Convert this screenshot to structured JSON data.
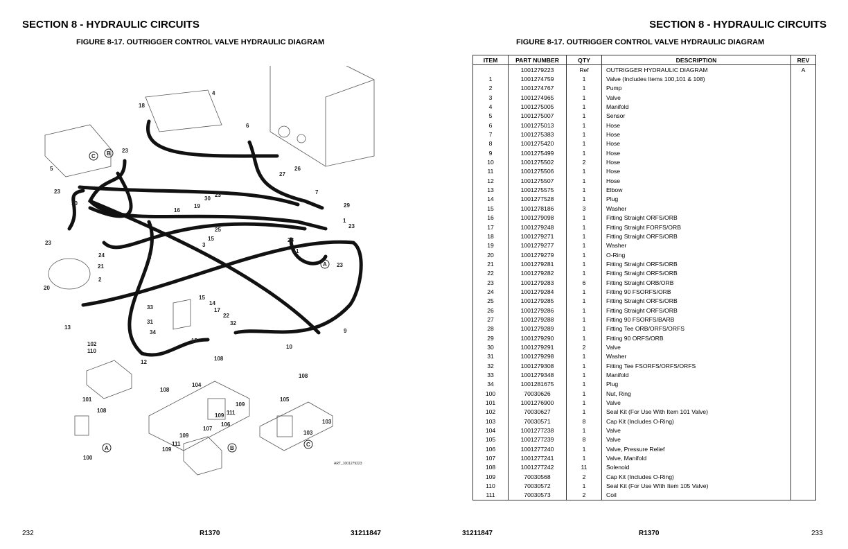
{
  "left_page": {
    "section_title": "SECTION 8 - HYDRAULIC CIRCUITS",
    "figure_title": "FIGURE 8-17. OUTRIGGER CONTROL VALVE HYDRAULIC DIAGRAM",
    "page_number": "232",
    "footer_model": "R1370",
    "footer_doc": "31211847"
  },
  "right_page": {
    "section_title": "SECTION 8 - HYDRAULIC CIRCUITS",
    "figure_title": "FIGURE 8-17. OUTRIGGER CONTROL VALVE HYDRAULIC DIAGRAM",
    "page_number": "233",
    "footer_model": "R1370",
    "footer_doc": "31211847"
  },
  "diagram": {
    "art_id": "ART_1001279223",
    "callouts": [
      "4",
      "18",
      "6",
      "23",
      "C",
      "B",
      "5",
      "27",
      "26",
      "23",
      "10",
      "7",
      "30",
      "23",
      "19",
      "16",
      "29",
      "1",
      "23",
      "25",
      "15",
      "3",
      "28",
      "23",
      "24",
      "11",
      "8",
      "21",
      "A",
      "23",
      "2",
      "20",
      "15",
      "14",
      "33",
      "17",
      "22",
      "32",
      "31",
      "34",
      "15",
      "13",
      "9",
      "10",
      "102",
      "110",
      "12",
      "108",
      "108",
      "104",
      "108",
      "101",
      "108",
      "109",
      "111",
      "109",
      "105",
      "103",
      "107",
      "106",
      "103",
      "A",
      "109",
      "111",
      "109",
      "B",
      "C",
      "100"
    ]
  },
  "parts_table": {
    "headers": {
      "item": "ITEM",
      "part": "PART NUMBER",
      "qty": "QTY",
      "desc": "DESCRIPTION",
      "rev": "REV"
    },
    "rows": [
      {
        "item": "",
        "part": "1001279223",
        "qty": "Ref",
        "desc": "OUTRIGGER HYDRAULIC  DIAGRAM",
        "rev": "A"
      },
      {
        "item": "1",
        "part": "1001274759",
        "qty": "1",
        "desc": "Valve (Includes Items 100,101 & 108)",
        "rev": ""
      },
      {
        "item": "2",
        "part": "1001274767",
        "qty": "1",
        "desc": "Pump",
        "rev": ""
      },
      {
        "item": "3",
        "part": "1001274965",
        "qty": "1",
        "desc": "Valve",
        "rev": ""
      },
      {
        "item": "4",
        "part": "1001275005",
        "qty": "1",
        "desc": "Manifold",
        "rev": ""
      },
      {
        "item": "5",
        "part": "1001275007",
        "qty": "1",
        "desc": "Sensor",
        "rev": ""
      },
      {
        "item": "6",
        "part": "1001275013",
        "qty": "1",
        "desc": "Hose",
        "rev": ""
      },
      {
        "item": "7",
        "part": "1001275383",
        "qty": "1",
        "desc": "Hose",
        "rev": ""
      },
      {
        "item": "8",
        "part": "1001275420",
        "qty": "1",
        "desc": "Hose",
        "rev": ""
      },
      {
        "item": "9",
        "part": "1001275499",
        "qty": "1",
        "desc": "Hose",
        "rev": ""
      },
      {
        "item": "10",
        "part": "1001275502",
        "qty": "2",
        "desc": "Hose",
        "rev": ""
      },
      {
        "item": "11",
        "part": "1001275506",
        "qty": "1",
        "desc": "Hose",
        "rev": ""
      },
      {
        "item": "12",
        "part": "1001275507",
        "qty": "1",
        "desc": "Hose",
        "rev": ""
      },
      {
        "item": "13",
        "part": "1001275575",
        "qty": "1",
        "desc": "Elbow",
        "rev": ""
      },
      {
        "item": "14",
        "part": "1001277528",
        "qty": "1",
        "desc": "Plug",
        "rev": ""
      },
      {
        "item": "15",
        "part": "1001278186",
        "qty": "3",
        "desc": "Washer",
        "rev": ""
      },
      {
        "item": "16",
        "part": "1001279098",
        "qty": "1",
        "desc": "Fitting Straight ORFS/ORB",
        "rev": ""
      },
      {
        "item": "17",
        "part": "1001279248",
        "qty": "1",
        "desc": "Fitting Straight FORFS/ORB",
        "rev": ""
      },
      {
        "item": "18",
        "part": "1001279271",
        "qty": "1",
        "desc": "Fitting Straight ORFS/ORB",
        "rev": ""
      },
      {
        "item": "19",
        "part": "1001279277",
        "qty": "1",
        "desc": "Washer",
        "rev": ""
      },
      {
        "item": "20",
        "part": "1001279279",
        "qty": "1",
        "desc": "O-Ring",
        "rev": ""
      },
      {
        "item": "21",
        "part": "1001279281",
        "qty": "1",
        "desc": "Fitting Straight ORFS/ORB",
        "rev": ""
      },
      {
        "item": "22",
        "part": "1001279282",
        "qty": "1",
        "desc": "Fitting Straight ORFS/ORB",
        "rev": ""
      },
      {
        "item": "23",
        "part": "1001279283",
        "qty": "6",
        "desc": "Fitting Straight ORB/ORB",
        "rev": ""
      },
      {
        "item": "24",
        "part": "1001279284",
        "qty": "1",
        "desc": "Fitting 90 FSORFS/ORB",
        "rev": ""
      },
      {
        "item": "25",
        "part": "1001279285",
        "qty": "1",
        "desc": "Fitting Straight ORFS/ORB",
        "rev": ""
      },
      {
        "item": "26",
        "part": "1001279286",
        "qty": "1",
        "desc": "Fitting Straight ORFS/ORB",
        "rev": ""
      },
      {
        "item": "27",
        "part": "1001279288",
        "qty": "1",
        "desc": "Fitting 90 FSORFS/BARB",
        "rev": ""
      },
      {
        "item": "28",
        "part": "1001279289",
        "qty": "1",
        "desc": "Fitting Tee ORB/ORFS/ORFS",
        "rev": ""
      },
      {
        "item": "29",
        "part": "1001279290",
        "qty": "1",
        "desc": "Fitting 90 ORFS/ORB",
        "rev": ""
      },
      {
        "item": "30",
        "part": "1001279291",
        "qty": "2",
        "desc": "Valve",
        "rev": ""
      },
      {
        "item": "31",
        "part": "1001279298",
        "qty": "1",
        "desc": "Washer",
        "rev": ""
      },
      {
        "item": "32",
        "part": "1001279308",
        "qty": "1",
        "desc": "Fitting Tee FSORFS/ORFS/ORFS",
        "rev": ""
      },
      {
        "item": "33",
        "part": "1001279348",
        "qty": "1",
        "desc": "Manifold",
        "rev": ""
      },
      {
        "item": "34",
        "part": "1001281675",
        "qty": "1",
        "desc": "Plug",
        "rev": ""
      },
      {
        "item": "100",
        "part": "70030626",
        "qty": "1",
        "desc": "Nut, Ring",
        "rev": ""
      },
      {
        "item": "101",
        "part": "1001276900",
        "qty": "1",
        "desc": "Valve",
        "rev": ""
      },
      {
        "item": "102",
        "part": "70030627",
        "qty": "1",
        "desc": "Seal Kit (For Use With Item 101 Valve)",
        "rev": ""
      },
      {
        "item": "103",
        "part": "70030571",
        "qty": "8",
        "desc": "Cap Kit (Includes O-Ring)",
        "rev": ""
      },
      {
        "item": "104",
        "part": "1001277238",
        "qty": "1",
        "desc": "Valve",
        "rev": ""
      },
      {
        "item": "105",
        "part": "1001277239",
        "qty": "8",
        "desc": "Valve",
        "rev": ""
      },
      {
        "item": "106",
        "part": "1001277240",
        "qty": "1",
        "desc": "Valve, Pressure Relief",
        "rev": ""
      },
      {
        "item": "107",
        "part": "1001277241",
        "qty": "1",
        "desc": "Valve, Manifold",
        "rev": ""
      },
      {
        "item": "108",
        "part": "1001277242",
        "qty": "11",
        "desc": "Solenoid",
        "rev": ""
      },
      {
        "item": "109",
        "part": "70030568",
        "qty": "2",
        "desc": "Cap Kit (Includes O-Ring)",
        "rev": ""
      },
      {
        "item": "110",
        "part": "70030572",
        "qty": "1",
        "desc": "Seal Kit (For Use WIth Item 105 Valve)",
        "rev": ""
      },
      {
        "item": "111",
        "part": "70030573",
        "qty": "2",
        "desc": "Coil",
        "rev": ""
      }
    ]
  }
}
